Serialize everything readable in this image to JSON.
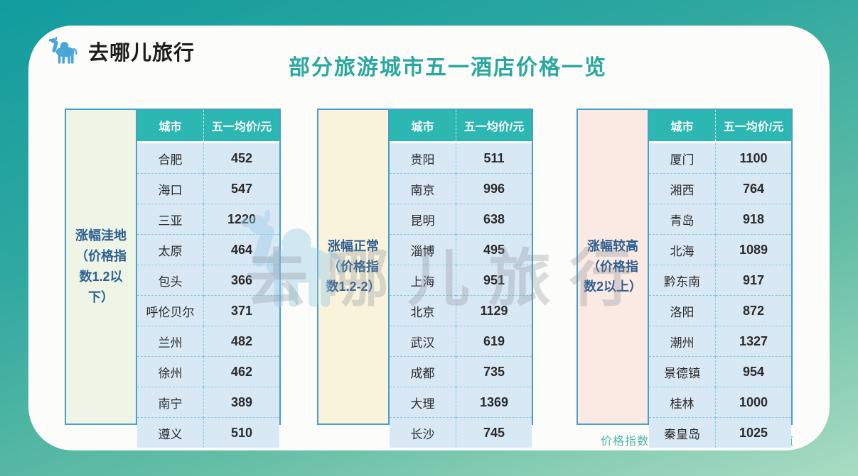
{
  "page": {
    "brand": "去哪儿旅行",
    "title": "部分旅游城市五一酒店价格一览",
    "footnote": "价格指数为五一价格与平季价格比值",
    "watermark_text": "去哪儿旅行"
  },
  "colors": {
    "background_top": "#129c9e",
    "background_bottom": "#a9dcc2",
    "card": "#fcfdfa",
    "title_text": "#2aa79e",
    "table_header_bg": "#2cb7b2",
    "row_bg": "#d9e8f5",
    "dash_line": "#86cade",
    "label_text": "#2d5f90",
    "group_border": "#4a9fc9",
    "logo_blue": "#4aa5d9",
    "footnote_text": "#53b3ab",
    "group_label_bgs": [
      "#eef5e7",
      "#faf3dc",
      "#fbe9e3"
    ]
  },
  "table_headers": {
    "city": "城市",
    "price": "五一均价/元"
  },
  "chart_data": [
    {
      "type": "table",
      "group_label": "涨幅洼地（价格指数1.2以下）",
      "columns": [
        "城市",
        "五一均价/元"
      ],
      "rows": [
        [
          "合肥",
          452
        ],
        [
          "海口",
          547
        ],
        [
          "三亚",
          1220
        ],
        [
          "太原",
          464
        ],
        [
          "包头",
          366
        ],
        [
          "呼伦贝尔",
          371
        ],
        [
          "兰州",
          482
        ],
        [
          "徐州",
          462
        ],
        [
          "南宁",
          389
        ],
        [
          "遵义",
          510
        ]
      ]
    },
    {
      "type": "table",
      "group_label": "涨幅正常（价格指数1.2-2）",
      "columns": [
        "城市",
        "五一均价/元"
      ],
      "rows": [
        [
          "贵阳",
          511
        ],
        [
          "南京",
          996
        ],
        [
          "昆明",
          638
        ],
        [
          "淄博",
          495
        ],
        [
          "上海",
          951
        ],
        [
          "北京",
          1129
        ],
        [
          "武汉",
          619
        ],
        [
          "成都",
          735
        ],
        [
          "大理",
          1369
        ],
        [
          "长沙",
          745
        ]
      ]
    },
    {
      "type": "table",
      "group_label": "涨幅较高（价格指数2以上）",
      "columns": [
        "城市",
        "五一均价/元"
      ],
      "rows": [
        [
          "厦门",
          1100
        ],
        [
          "湘西",
          764
        ],
        [
          "青岛",
          918
        ],
        [
          "北海",
          1089
        ],
        [
          "黔东南",
          917
        ],
        [
          "洛阳",
          872
        ],
        [
          "潮州",
          1327
        ],
        [
          "景德镇",
          954
        ],
        [
          "桂林",
          1000
        ],
        [
          "秦皇岛",
          1025
        ]
      ]
    }
  ]
}
